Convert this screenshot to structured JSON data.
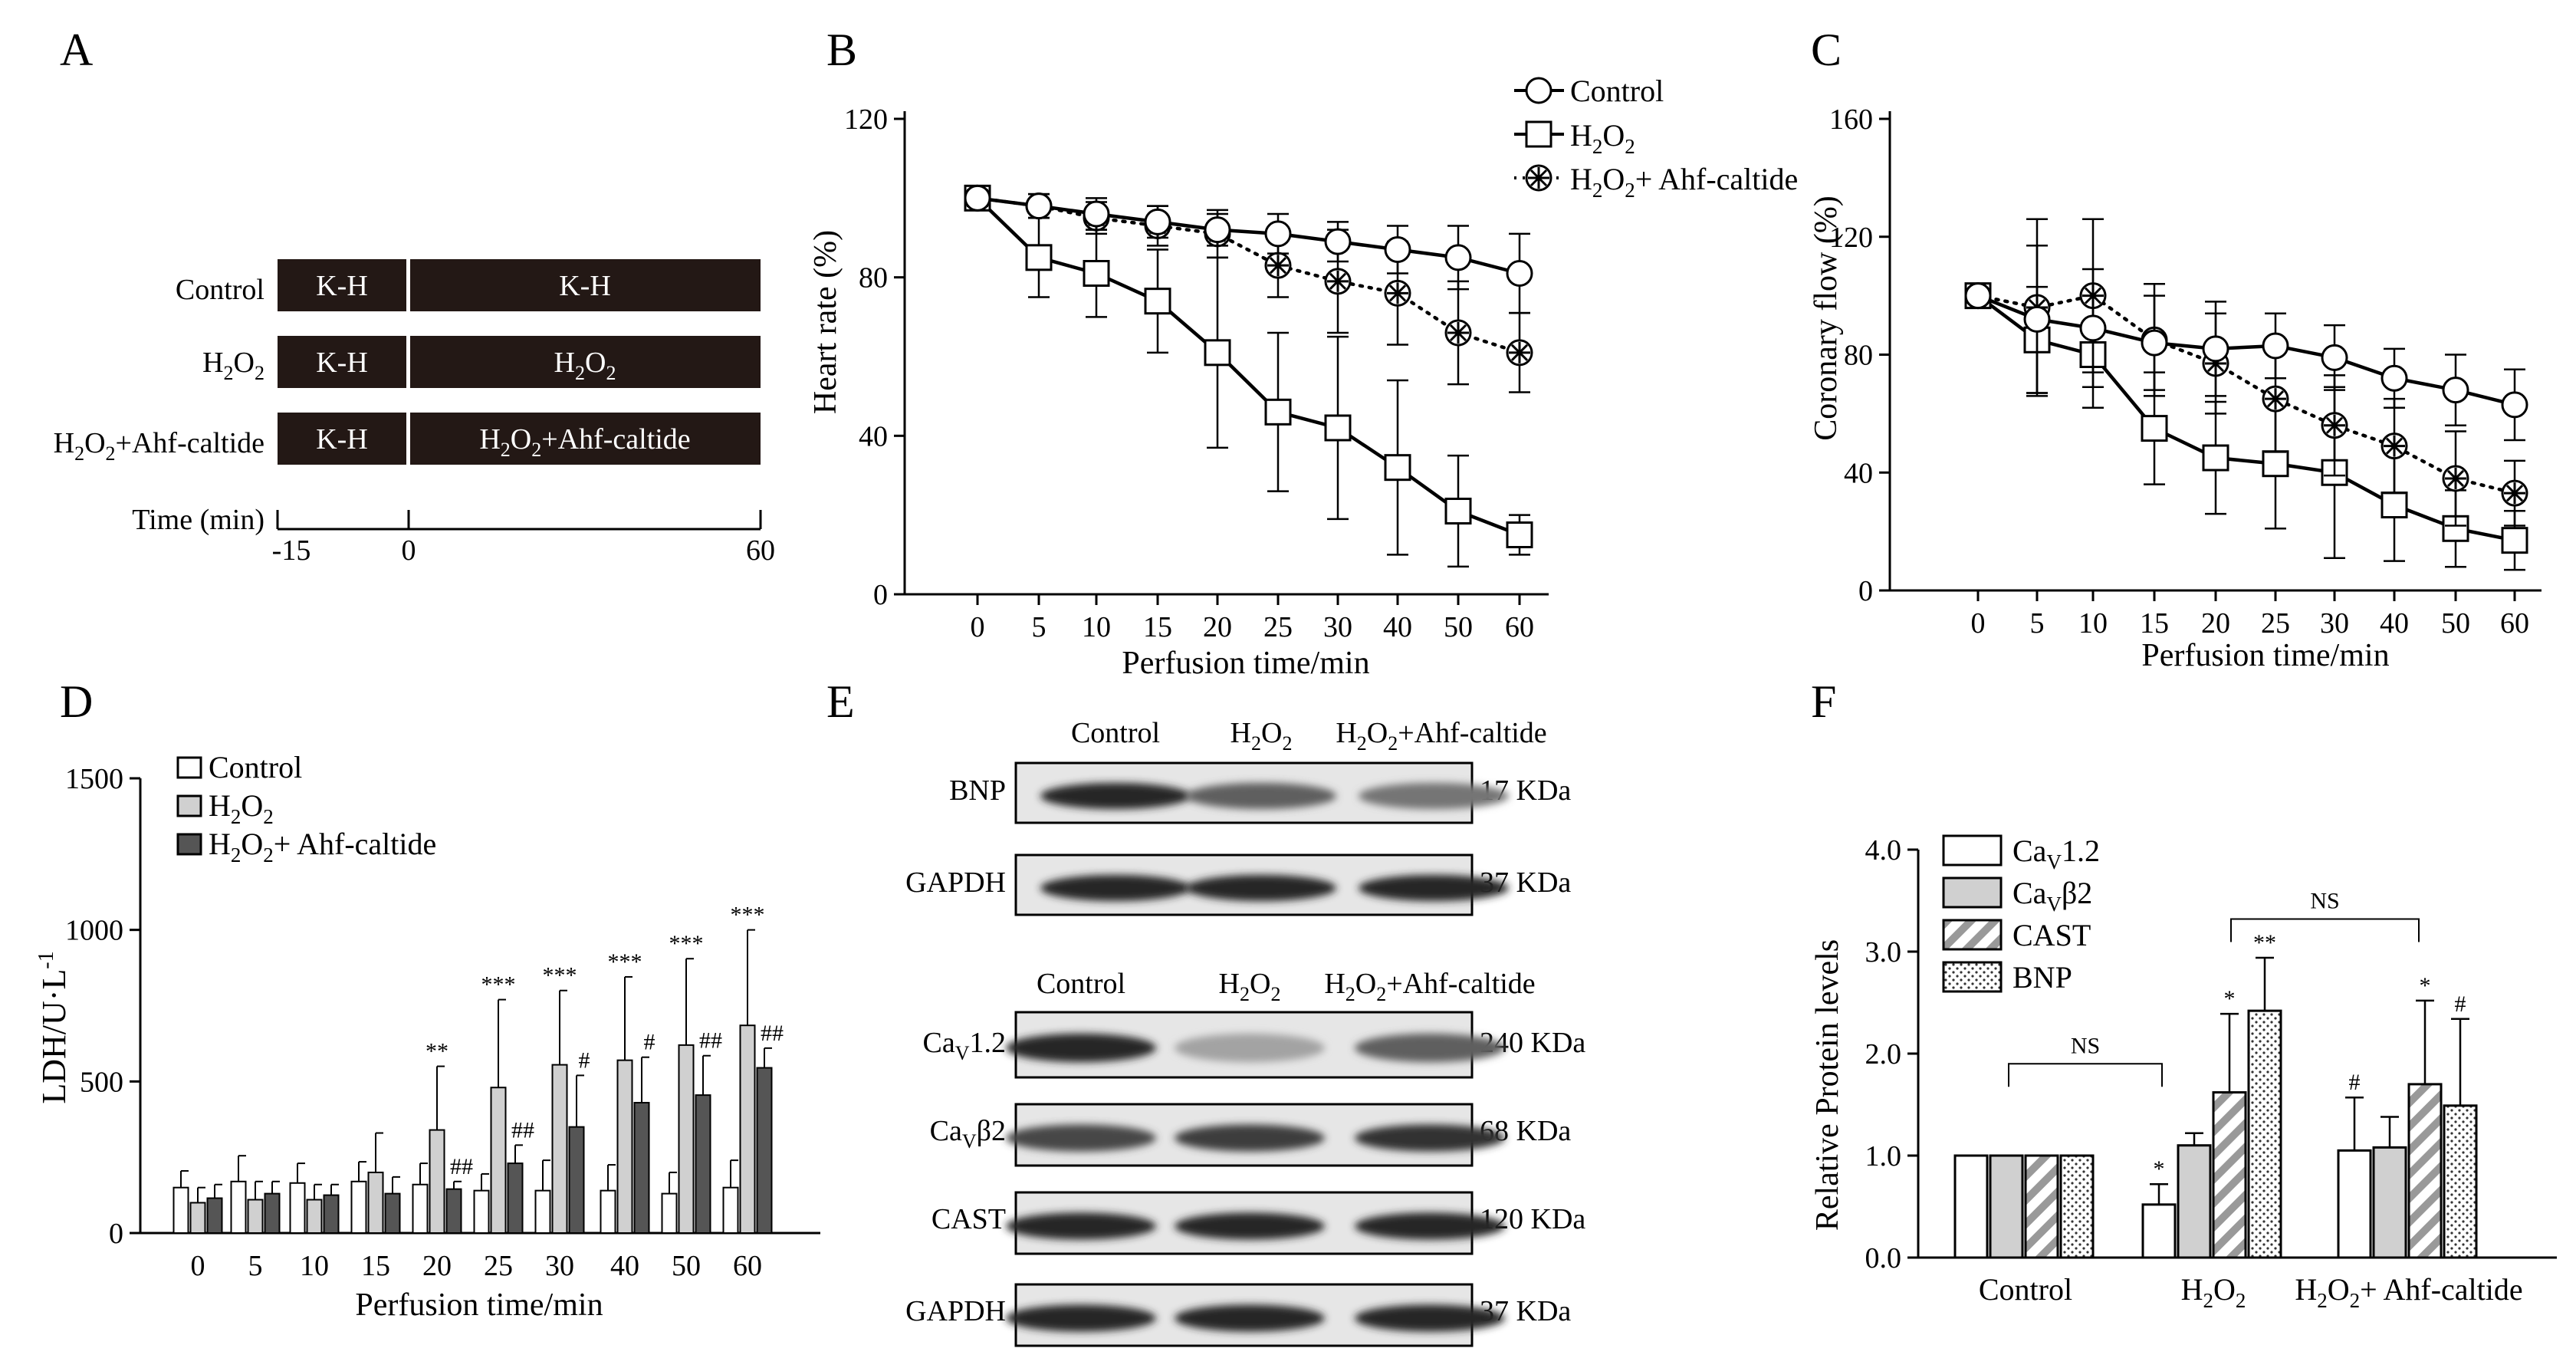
{
  "chart_data": [
    {
      "panel": "A",
      "type": "diagram",
      "rows": [
        {
          "label": "Control",
          "pre": "K-H",
          "main": "K-H"
        },
        {
          "label": "H2O2",
          "pre": "K-H",
          "main": "H2O2"
        },
        {
          "label": "H2O2+Ahf-caltide",
          "pre": "K-H",
          "main": "H2O2+Ahf-caltide"
        }
      ],
      "axis_label": "Time (min)",
      "ticks": [
        "-15",
        "0",
        "60"
      ]
    },
    {
      "panel": "B",
      "type": "line",
      "categories": [
        "0",
        "5",
        "10",
        "15",
        "20",
        "25",
        "30",
        "40",
        "50",
        "60"
      ],
      "xlabel": "Perfusion time/min",
      "ylabel": "Heart rate (%)",
      "ylim": [
        0,
        120
      ],
      "yticks": [
        "0",
        "40",
        "80",
        "120"
      ],
      "legend_position": "top-right",
      "series": [
        {
          "name": "Control",
          "marker": "circle",
          "line": "solid",
          "values": [
            100,
            98,
            96,
            94,
            92,
            91,
            89,
            87,
            85,
            81
          ],
          "errors": [
            2,
            3,
            4,
            4,
            4,
            5,
            5,
            6,
            8,
            10
          ]
        },
        {
          "name": "H2O2",
          "marker": "square",
          "line": "solid",
          "values": [
            100,
            85,
            81,
            74,
            61,
            46,
            42,
            32,
            21,
            15
          ],
          "errors": [
            2,
            10,
            11,
            13,
            24,
            20,
            23,
            22,
            14,
            5
          ]
        },
        {
          "name": "H2O2+ Ahf-caltide",
          "marker": "star",
          "line": "dotted",
          "values": [
            100,
            98,
            95,
            93,
            91,
            83,
            79,
            76,
            66,
            61
          ],
          "errors": [
            2,
            3,
            4,
            5,
            6,
            8,
            13,
            13,
            13,
            10
          ]
        }
      ]
    },
    {
      "panel": "C",
      "type": "line",
      "categories": [
        "0",
        "5",
        "10",
        "15",
        "20",
        "25",
        "30",
        "40",
        "50",
        "60"
      ],
      "xlabel": "Perfusion time/min",
      "ylabel": "Coronary flow (%)",
      "ylim": [
        0,
        160
      ],
      "yticks": [
        "0",
        "40",
        "80",
        "120",
        "160"
      ],
      "series": [
        {
          "name": "Control",
          "marker": "circle",
          "line": "solid",
          "values": [
            100,
            92,
            89,
            84,
            82,
            83,
            79,
            72,
            68,
            63
          ],
          "errors": [
            2,
            25,
            20,
            16,
            16,
            11,
            11,
            10,
            12,
            12
          ]
        },
        {
          "name": "H2O2",
          "marker": "square",
          "line": "solid",
          "values": [
            100,
            85,
            80,
            55,
            45,
            43,
            40,
            29,
            21,
            17
          ],
          "errors": [
            2,
            18,
            18,
            19,
            19,
            22,
            29,
            19,
            13,
            10
          ]
        },
        {
          "name": "H2O2+ Ahf-caltide",
          "marker": "star",
          "line": "dotted",
          "values": [
            100,
            96,
            100,
            85,
            77,
            65,
            56,
            49,
            38,
            33
          ],
          "errors": [
            2,
            30,
            26,
            19,
            17,
            18,
            17,
            16,
            16,
            11
          ]
        }
      ]
    },
    {
      "panel": "D",
      "type": "bar",
      "categories": [
        "0",
        "5",
        "10",
        "15",
        "20",
        "25",
        "30",
        "40",
        "50",
        "60"
      ],
      "xlabel": "Perfusion time/min",
      "ylabel": "LDH/U·L-1",
      "ylim": [
        0,
        1500
      ],
      "yticks": [
        "0",
        "500",
        "1000",
        "1500"
      ],
      "legend_position": "top-left",
      "series": [
        {
          "name": "Control",
          "color": "#ffffff",
          "values": [
            150,
            170,
            165,
            170,
            160,
            140,
            140,
            140,
            130,
            150
          ],
          "errors": [
            55,
            85,
            65,
            65,
            70,
            55,
            100,
            85,
            70,
            90
          ]
        },
        {
          "name": "H2O2",
          "color": "#d0d0d0",
          "values": [
            100,
            110,
            110,
            200,
            340,
            480,
            555,
            570,
            620,
            685
          ],
          "errors": [
            50,
            60,
            50,
            130,
            210,
            290,
            245,
            275,
            285,
            315
          ]
        },
        {
          "name": "H2O2+ Ahf-caltide",
          "color": "#555555",
          "values": [
            115,
            130,
            125,
            130,
            145,
            230,
            350,
            430,
            455,
            545
          ],
          "errors": [
            45,
            40,
            35,
            55,
            25,
            60,
            170,
            150,
            130,
            65
          ]
        }
      ],
      "annotations": [
        {
          "category": "20",
          "series": 1,
          "text": "**"
        },
        {
          "category": "25",
          "series": 1,
          "text": "***"
        },
        {
          "category": "30",
          "series": 1,
          "text": "***"
        },
        {
          "category": "40",
          "series": 1,
          "text": "***"
        },
        {
          "category": "50",
          "series": 1,
          "text": "***"
        },
        {
          "category": "60",
          "series": 1,
          "text": "***"
        },
        {
          "category": "20",
          "series": 2,
          "text": "##"
        },
        {
          "category": "25",
          "series": 2,
          "text": "##"
        },
        {
          "category": "30",
          "series": 2,
          "text": "#"
        },
        {
          "category": "40",
          "series": 2,
          "text": "#"
        },
        {
          "category": "50",
          "series": 2,
          "text": "##"
        },
        {
          "category": "60",
          "series": 2,
          "text": "##"
        }
      ]
    },
    {
      "panel": "E",
      "type": "blot",
      "upper": {
        "lanes": [
          "Control",
          "H2O2",
          "H2O2+Ahf-caltide"
        ],
        "bands": [
          {
            "protein": "BNP",
            "size": "17 KDa",
            "intensity": [
              0.95,
              0.7,
              0.6
            ]
          },
          {
            "protein": "GAPDH",
            "size": "37 KDa",
            "intensity": [
              0.95,
              0.95,
              0.95
            ]
          }
        ]
      },
      "lower": {
        "lanes": [
          "Control",
          "H2O2",
          "H2O2+Ahf-caltide"
        ],
        "bands": [
          {
            "protein": "CaV1.2",
            "size": "240 KDa",
            "intensity": [
              0.95,
              0.4,
              0.7
            ]
          },
          {
            "protein": "CaVβ2",
            "size": "68 KDa",
            "intensity": [
              0.8,
              0.85,
              0.9
            ]
          },
          {
            "protein": "CAST",
            "size": "120 KDa",
            "intensity": [
              0.95,
              0.95,
              0.95
            ]
          },
          {
            "protein": "GAPDH",
            "size": "37 KDa",
            "intensity": [
              0.95,
              0.95,
              0.95
            ]
          }
        ]
      }
    },
    {
      "panel": "F",
      "type": "bar",
      "categories": [
        "Control",
        "H2O2",
        "H2O2+ Ahf-caltide"
      ],
      "ylabel": "Relative Protein levels",
      "ylim": [
        0,
        4
      ],
      "yticks": [
        "0.0",
        "1.0",
        "2.0",
        "3.0",
        "4.0"
      ],
      "legend_position": "top-left",
      "series": [
        {
          "name": "CaV1.2",
          "pattern": "white",
          "values": [
            1.0,
            0.52,
            1.05
          ],
          "errors": [
            0,
            0.2,
            0.52
          ]
        },
        {
          "name": "CaVβ2",
          "pattern": "gray",
          "values": [
            1.0,
            1.1,
            1.08
          ],
          "errors": [
            0,
            0.12,
            0.3
          ]
        },
        {
          "name": "CAST",
          "pattern": "hatch",
          "values": [
            1.0,
            1.62,
            1.7
          ],
          "errors": [
            0,
            0.77,
            0.82
          ]
        },
        {
          "name": "BNP",
          "pattern": "dots",
          "values": [
            1.0,
            2.42,
            1.49
          ],
          "errors": [
            0,
            0.52,
            0.85
          ]
        }
      ],
      "annotations": [
        {
          "category": 1,
          "series": 0,
          "text": "*"
        },
        {
          "category": 1,
          "series": 2,
          "text": "*"
        },
        {
          "category": 1,
          "series": 3,
          "text": "**"
        },
        {
          "category": 2,
          "series": 0,
          "text": "#"
        },
        {
          "category": 2,
          "series": 2,
          "text": "*"
        },
        {
          "category": 2,
          "series": 3,
          "text": "#"
        }
      ],
      "brackets": [
        {
          "from": 0,
          "to": 1,
          "text": "NS"
        },
        {
          "from": 1,
          "to": 2,
          "text": "NS"
        }
      ]
    }
  ]
}
